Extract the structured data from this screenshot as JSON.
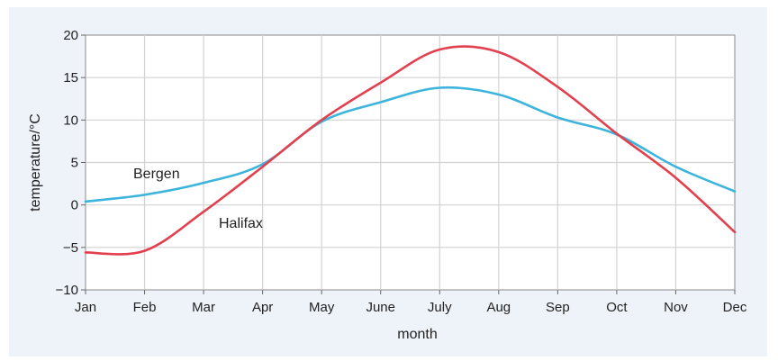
{
  "chart_data": {
    "type": "line",
    "title": "",
    "xlabel": "month",
    "ylabel": "temperature/°C",
    "categories": [
      "Jan",
      "Feb",
      "Mar",
      "Apr",
      "May",
      "June",
      "July",
      "Aug",
      "Sep",
      "Oct",
      "Nov",
      "Dec"
    ],
    "ylim": [
      -10,
      20
    ],
    "yticks": [
      20,
      15,
      10,
      5,
      0,
      -5,
      -10
    ],
    "ytick_labels": [
      "20",
      "15",
      "10",
      "5",
      "0",
      "−5",
      "−10"
    ],
    "grid": true,
    "series": [
      {
        "name": "Bergen",
        "color": "#3cb4dc",
        "values": [
          0.4,
          1.2,
          2.6,
          4.8,
          9.8,
          12.1,
          13.8,
          13.0,
          10.3,
          8.3,
          4.5,
          1.6
        ]
      },
      {
        "name": "Halifax",
        "color": "#e2404e",
        "values": [
          -5.6,
          -5.4,
          -0.8,
          4.5,
          10.0,
          14.4,
          18.3,
          18.0,
          13.9,
          8.4,
          3.2,
          -3.2
        ]
      }
    ]
  }
}
